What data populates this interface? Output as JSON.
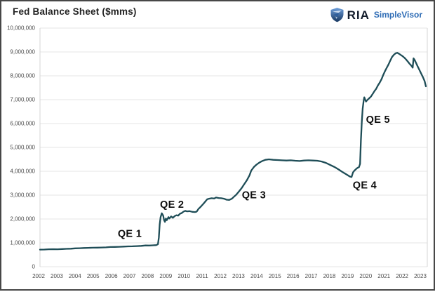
{
  "header": {
    "title": "Fed Balance Sheet ($mms)"
  },
  "branding": {
    "name_primary": "RIA",
    "name_secondary": "SimpleVisor",
    "icon": "ria-shield-icon",
    "color_primary": "#131c2b",
    "color_secondary": "#2e6cb5"
  },
  "chart_data": {
    "type": "line",
    "title": "Fed Balance Sheet ($mms)",
    "xlabel": "",
    "ylabel": "",
    "xlim": [
      2002,
      2024
    ],
    "ylim": [
      0,
      10000000
    ],
    "grid": "horizontal",
    "legend": "none",
    "line_color": "#1e4d57",
    "grid_color": "#e4e4e4",
    "plot_border_color": "#d6d6d6",
    "x_ticks": [
      "2002",
      "2003",
      "2004",
      "2005",
      "2006",
      "2007",
      "2008",
      "2009",
      "2010",
      "2011",
      "2012",
      "2013",
      "2014",
      "2015",
      "2016",
      "2017",
      "2018",
      "2019",
      "2020",
      "2021",
      "2022",
      "2023"
    ],
    "y_ticks": [
      0,
      1000000,
      2000000,
      3000000,
      4000000,
      5000000,
      6000000,
      7000000,
      8000000,
      9000000,
      10000000
    ],
    "y_tick_labels": [
      "0",
      "1,000,000",
      "2,000,000",
      "3,000,000",
      "4,000,000",
      "5,000,000",
      "6,000,000",
      "7,000,000",
      "8,000,000",
      "9,000,000",
      "10,000,000"
    ],
    "annotations": [
      {
        "label": "QE 1",
        "x": 2007.1,
        "y": 1400000
      },
      {
        "label": "QE 2",
        "x": 2009.5,
        "y": 2620000
      },
      {
        "label": "QE 3",
        "x": 2014.15,
        "y": 3020000
      },
      {
        "label": "QE 4",
        "x": 2020.45,
        "y": 3430000
      },
      {
        "label": "QE 5",
        "x": 2021.2,
        "y": 6180000
      }
    ],
    "series": [
      {
        "name": "Fed Balance Sheet",
        "points": [
          [
            2002.0,
            719000
          ],
          [
            2002.25,
            722000
          ],
          [
            2002.5,
            731000
          ],
          [
            2002.75,
            736000
          ],
          [
            2003.0,
            732000
          ],
          [
            2003.25,
            741000
          ],
          [
            2003.5,
            749000
          ],
          [
            2003.75,
            757000
          ],
          [
            2004.0,
            771000
          ],
          [
            2004.25,
            776000
          ],
          [
            2004.5,
            784000
          ],
          [
            2004.75,
            790000
          ],
          [
            2005.0,
            797000
          ],
          [
            2005.25,
            800000
          ],
          [
            2005.5,
            806000
          ],
          [
            2005.75,
            812000
          ],
          [
            2006.0,
            825000
          ],
          [
            2006.25,
            829000
          ],
          [
            2006.5,
            836000
          ],
          [
            2006.75,
            843000
          ],
          [
            2007.0,
            852000
          ],
          [
            2007.25,
            857000
          ],
          [
            2007.5,
            864000
          ],
          [
            2007.75,
            873000
          ],
          [
            2008.0,
            891000
          ],
          [
            2008.2,
            889000
          ],
          [
            2008.4,
            897000
          ],
          [
            2008.6,
            905000
          ],
          [
            2008.7,
            940000
          ],
          [
            2008.75,
            1220000
          ],
          [
            2008.8,
            1770000
          ],
          [
            2008.85,
            2080000
          ],
          [
            2008.92,
            2240000
          ],
          [
            2009.0,
            2140000
          ],
          [
            2009.05,
            1950000
          ],
          [
            2009.1,
            1880000
          ],
          [
            2009.15,
            2020000
          ],
          [
            2009.2,
            1950000
          ],
          [
            2009.3,
            2080000
          ],
          [
            2009.35,
            2020000
          ],
          [
            2009.45,
            2110000
          ],
          [
            2009.55,
            2050000
          ],
          [
            2009.65,
            2120000
          ],
          [
            2009.75,
            2160000
          ],
          [
            2009.85,
            2140000
          ],
          [
            2009.95,
            2220000
          ],
          [
            2010.05,
            2250000
          ],
          [
            2010.15,
            2310000
          ],
          [
            2010.25,
            2340000
          ],
          [
            2010.35,
            2320000
          ],
          [
            2010.5,
            2330000
          ],
          [
            2010.65,
            2300000
          ],
          [
            2010.8,
            2290000
          ],
          [
            2010.9,
            2310000
          ],
          [
            2011.0,
            2420000
          ],
          [
            2011.1,
            2490000
          ],
          [
            2011.2,
            2570000
          ],
          [
            2011.3,
            2650000
          ],
          [
            2011.4,
            2740000
          ],
          [
            2011.5,
            2830000
          ],
          [
            2011.6,
            2850000
          ],
          [
            2011.75,
            2870000
          ],
          [
            2011.9,
            2860000
          ],
          [
            2012.0,
            2900000
          ],
          [
            2012.15,
            2880000
          ],
          [
            2012.3,
            2870000
          ],
          [
            2012.45,
            2850000
          ],
          [
            2012.6,
            2810000
          ],
          [
            2012.75,
            2800000
          ],
          [
            2012.9,
            2850000
          ],
          [
            2013.0,
            2920000
          ],
          [
            2013.15,
            3020000
          ],
          [
            2013.3,
            3150000
          ],
          [
            2013.45,
            3290000
          ],
          [
            2013.6,
            3460000
          ],
          [
            2013.75,
            3620000
          ],
          [
            2013.9,
            3830000
          ],
          [
            2014.0,
            4030000
          ],
          [
            2014.15,
            4180000
          ],
          [
            2014.3,
            4280000
          ],
          [
            2014.45,
            4360000
          ],
          [
            2014.6,
            4420000
          ],
          [
            2014.8,
            4480000
          ],
          [
            2015.0,
            4500000
          ],
          [
            2015.25,
            4480000
          ],
          [
            2015.5,
            4470000
          ],
          [
            2015.75,
            4460000
          ],
          [
            2016.0,
            4450000
          ],
          [
            2016.25,
            4460000
          ],
          [
            2016.5,
            4440000
          ],
          [
            2016.75,
            4430000
          ],
          [
            2017.0,
            4450000
          ],
          [
            2017.25,
            4460000
          ],
          [
            2017.5,
            4450000
          ],
          [
            2017.75,
            4440000
          ],
          [
            2018.0,
            4410000
          ],
          [
            2018.25,
            4350000
          ],
          [
            2018.5,
            4260000
          ],
          [
            2018.75,
            4170000
          ],
          [
            2019.0,
            4060000
          ],
          [
            2019.2,
            3960000
          ],
          [
            2019.4,
            3870000
          ],
          [
            2019.6,
            3780000
          ],
          [
            2019.7,
            3760000
          ],
          [
            2019.78,
            3950000
          ],
          [
            2019.85,
            4020000
          ],
          [
            2019.95,
            4090000
          ],
          [
            2020.05,
            4150000
          ],
          [
            2020.12,
            4170000
          ],
          [
            2020.18,
            4310000
          ],
          [
            2020.23,
            5300000
          ],
          [
            2020.28,
            6080000
          ],
          [
            2020.33,
            6620000
          ],
          [
            2020.38,
            6930000
          ],
          [
            2020.42,
            7100000
          ],
          [
            2020.47,
            7010000
          ],
          [
            2020.52,
            6920000
          ],
          [
            2020.6,
            6990000
          ],
          [
            2020.7,
            7060000
          ],
          [
            2020.8,
            7130000
          ],
          [
            2020.9,
            7240000
          ],
          [
            2021.0,
            7360000
          ],
          [
            2021.1,
            7460000
          ],
          [
            2021.2,
            7600000
          ],
          [
            2021.3,
            7720000
          ],
          [
            2021.4,
            7860000
          ],
          [
            2021.5,
            8040000
          ],
          [
            2021.6,
            8200000
          ],
          [
            2021.7,
            8340000
          ],
          [
            2021.8,
            8480000
          ],
          [
            2021.9,
            8640000
          ],
          [
            2022.0,
            8790000
          ],
          [
            2022.1,
            8880000
          ],
          [
            2022.2,
            8940000
          ],
          [
            2022.3,
            8965000
          ],
          [
            2022.4,
            8920000
          ],
          [
            2022.5,
            8870000
          ],
          [
            2022.6,
            8820000
          ],
          [
            2022.7,
            8760000
          ],
          [
            2022.8,
            8680000
          ],
          [
            2022.9,
            8590000
          ],
          [
            2023.0,
            8500000
          ],
          [
            2023.1,
            8420000
          ],
          [
            2023.17,
            8340000
          ],
          [
            2023.22,
            8730000
          ],
          [
            2023.28,
            8670000
          ],
          [
            2023.35,
            8560000
          ],
          [
            2023.45,
            8400000
          ],
          [
            2023.55,
            8250000
          ],
          [
            2023.65,
            8100000
          ],
          [
            2023.75,
            7950000
          ],
          [
            2023.85,
            7780000
          ],
          [
            2023.92,
            7560000
          ]
        ]
      }
    ]
  }
}
